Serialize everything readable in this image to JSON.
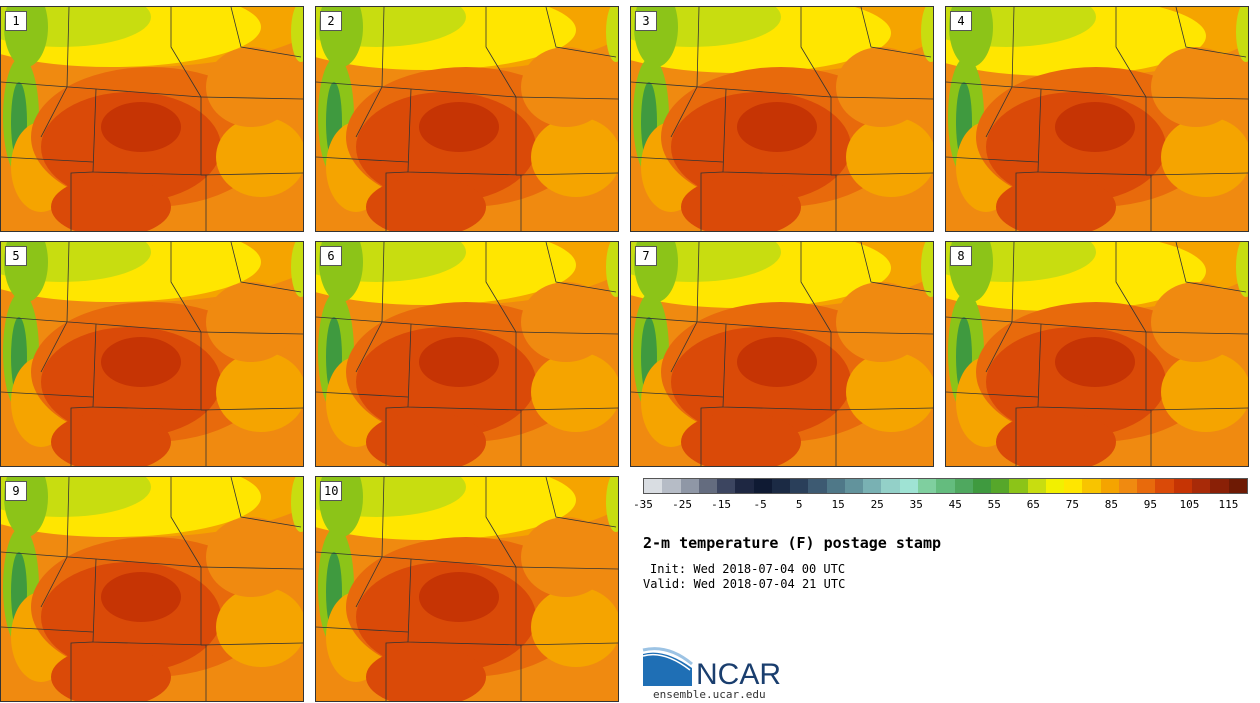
{
  "stamps": [
    {
      "label": "1"
    },
    {
      "label": "2"
    },
    {
      "label": "3"
    },
    {
      "label": "4"
    },
    {
      "label": "5"
    },
    {
      "label": "6"
    },
    {
      "label": "7"
    },
    {
      "label": "8"
    },
    {
      "label": "9"
    },
    {
      "label": "10"
    }
  ],
  "colorbar": {
    "colors": [
      "#d9dde2",
      "#b6bcc6",
      "#8f97a6",
      "#646c7f",
      "#3c4560",
      "#1e2742",
      "#0f1a33",
      "#1b2a44",
      "#2a3f5a",
      "#3d5a72",
      "#4f7888",
      "#62939c",
      "#79b1b3",
      "#93d0c8",
      "#9fe3d4",
      "#7fcf9f",
      "#64bc7e",
      "#4fa85f",
      "#3f9a3f",
      "#56a72a",
      "#8cc418",
      "#c8dd10",
      "#f2f000",
      "#ffe600",
      "#f8c400",
      "#f5a400",
      "#f08a10",
      "#e86a0c",
      "#da4a08",
      "#c63404",
      "#a82a08",
      "#8a2006",
      "#6e1a04"
    ],
    "tick_labels": [
      "-35",
      "-25",
      "-15",
      "-5",
      "5",
      "15",
      "25",
      "35",
      "45",
      "55",
      "65",
      "75",
      "85",
      "95",
      "105",
      "115"
    ]
  },
  "title": "2-m temperature (F) postage stamp",
  "init": "Init: Wed 2018-07-04 00 UTC",
  "valid": "Valid: Wed 2018-07-04 21 UTC",
  "logo_text": "NCAR",
  "site": "ensemble.ucar.edu"
}
